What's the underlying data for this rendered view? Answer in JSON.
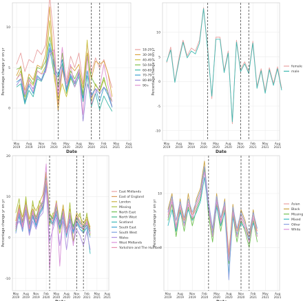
{
  "chart_data": [
    {
      "type": "line",
      "xlabel": "Date",
      "ylabel": "Percentage change yr on yr",
      "x_ticks": [
        "May 2019",
        "Aug 2019",
        "Nov 2019",
        "Feb 2020",
        "May 2020",
        "Aug 2020",
        "Nov 2020",
        "Feb 2021",
        "May 2021",
        "Aug 2021"
      ],
      "y_ticks": [
        0,
        5,
        10
      ],
      "ylim": [
        -4,
        13
      ],
      "grid": true,
      "legend_position": "right",
      "vlines": [
        "Mar 2020",
        "Nov 2020",
        "Jan 2021"
      ],
      "series": [
        {
          "name": "18-29",
          "color": "#e8a0a0",
          "values": [
            5.4,
            6.8,
            4.5,
            6.0,
            5.6,
            7.2,
            6.6,
            7.8,
            13.8,
            8.6,
            0.5,
            5.4,
            3.4,
            6.4,
            5.0,
            6.8,
            3.0,
            8.0,
            4.4,
            6.2,
            4.9,
            6.0,
            4.3,
            2.5
          ]
        },
        {
          "name": "30-39",
          "color": "#d9a441",
          "values": [
            4.0,
            5.2,
            2.2,
            4.2,
            3.5,
            5.3,
            5.0,
            6.6,
            12.5,
            5.4,
            -0.3,
            4.8,
            2.4,
            5.2,
            4.6,
            5.4,
            2.5,
            6.8,
            3.6,
            5.8,
            5.4,
            5.8,
            4.3,
            1.4
          ]
        },
        {
          "name": "40-49",
          "color": "#c9c040",
          "values": [
            3.5,
            4.6,
            0.8,
            3.4,
            2.8,
            4.6,
            4.2,
            5.2,
            10.8,
            4.0,
            1.0,
            3.0,
            1.4,
            3.6,
            3.0,
            4.2,
            1.5,
            8.4,
            0.8,
            3.0,
            2.0,
            3.5,
            2.0,
            0.2
          ]
        },
        {
          "name": "50-59",
          "color": "#7fbf4a",
          "values": [
            4.8,
            5.0,
            1.4,
            3.8,
            3.0,
            5.0,
            4.8,
            5.8,
            8.8,
            6.0,
            2.6,
            6.8,
            1.8,
            4.6,
            3.6,
            4.8,
            1.8,
            6.5,
            3.8,
            2.8,
            2.2,
            3.8,
            1.8,
            0.8
          ]
        },
        {
          "name": "60-69",
          "color": "#3fb8a8",
          "values": [
            2.6,
            3.0,
            0.5,
            2.2,
            1.4,
            3.6,
            3.3,
            4.6,
            7.2,
            4.3,
            3.8,
            5.5,
            2.0,
            3.8,
            2.6,
            3.9,
            0.8,
            4.0,
            0.2,
            1.8,
            -0.2,
            1.5,
            0.5,
            -0.4
          ]
        },
        {
          "name": "70-79",
          "color": "#3aa0d0",
          "values": [
            3.2,
            3.6,
            0.7,
            2.8,
            1.8,
            4.0,
            3.5,
            5.0,
            8.0,
            5.2,
            4.0,
            6.0,
            2.2,
            4.0,
            3.0,
            4.2,
            1.2,
            4.6,
            1.6,
            2.4,
            0.8,
            2.6,
            1.6,
            0.1
          ]
        },
        {
          "name": "80-89",
          "color": "#9a8cd8",
          "values": [
            2.8,
            3.6,
            1.6,
            3.0,
            2.4,
            3.8,
            3.4,
            4.8,
            7.4,
            5.6,
            2.0,
            5.0,
            2.6,
            4.2,
            3.2,
            4.4,
            -1.6,
            3.0,
            1.4,
            2.4,
            1.8,
            2.6,
            2.0,
            0.2
          ]
        },
        {
          "name": "90+",
          "color": "#e090d0",
          "values": [
            3.6,
            4.2,
            1.8,
            3.6,
            2.0,
            4.6,
            4.2,
            4.4,
            6.6,
            7.2,
            1.5,
            7.5,
            3.0,
            5.4,
            2.6,
            4.8,
            -0.8,
            6.4,
            0.4,
            2.0,
            2.6,
            5.4,
            2.8,
            0.8
          ]
        }
      ]
    },
    {
      "type": "line",
      "xlabel": "Date",
      "ylabel": "Percentage change yr on yr",
      "x_ticks": [
        "May 2019",
        "Aug 2019",
        "Nov 2019",
        "Feb 2020",
        "May 2020",
        "Aug 2020",
        "Nov 2020",
        "Feb 2021",
        "May 2021",
        "Aug 2021"
      ],
      "y_ticks": [
        -10,
        -5,
        0,
        5,
        10
      ],
      "ylim": [
        -12,
        16
      ],
      "grid": true,
      "legend_position": "right",
      "vlines": [
        "Mar 2020",
        "Nov 2020",
        "Jan 2021"
      ],
      "series": [
        {
          "name": "female",
          "color": "#e8a0a0",
          "values": [
            3.8,
            7.0,
            0.0,
            4.8,
            8.4,
            5.2,
            6.8,
            6.2,
            8.4,
            15.0,
            7.0,
            -3.5,
            9.0,
            9.0,
            2.2,
            6.2,
            -8.6,
            8.4,
            2.4,
            4.0,
            2.0,
            8.2,
            -1.0,
            2.6,
            -2.0,
            2.8,
            -0.4,
            3.0,
            -1.4
          ]
        },
        {
          "name": "male",
          "color": "#3fb8b0",
          "values": [
            4.0,
            6.4,
            -0.2,
            4.2,
            8.0,
            4.8,
            6.2,
            5.6,
            7.8,
            14.8,
            6.4,
            -3.0,
            8.6,
            8.6,
            1.8,
            5.8,
            -8.2,
            8.0,
            2.0,
            3.6,
            1.6,
            7.8,
            -1.4,
            2.2,
            -2.4,
            2.4,
            -0.8,
            2.6,
            -1.8
          ]
        }
      ]
    },
    {
      "type": "line",
      "xlabel": "Date",
      "ylabel": "Percentage change yr on yr",
      "x_ticks": [
        "May 2019",
        "Aug 2019",
        "Nov 2019",
        "Feb 2020",
        "May 2020",
        "Aug 2020",
        "Nov 2020",
        "Feb 2021",
        "May 2021",
        "Aug 2021"
      ],
      "y_ticks": [
        -10,
        0,
        10,
        20
      ],
      "ylim": [
        -13,
        20
      ],
      "grid": true,
      "legend_position": "right",
      "vlines": [
        "Mar 2020",
        "Nov 2020",
        "Jan 2021"
      ],
      "series": [
        {
          "name": "East Midlands",
          "color": "#e8a0a0",
          "values": [
            2.0,
            6.5,
            3.0,
            7.5,
            2.5,
            6.0,
            4.0,
            6.5,
            8.0,
            14.0,
            5.0,
            4.0,
            7.0,
            3.0,
            6.0,
            1.0,
            5.0,
            2.0,
            4.5,
            3.0,
            2.0,
            3.5,
            1.5
          ]
        },
        {
          "name": "East of England",
          "color": "#d99a5a",
          "values": [
            3.0,
            7.5,
            4.0,
            8.5,
            3.5,
            7.0,
            5.0,
            7.5,
            9.0,
            15.0,
            4.0,
            5.0,
            8.0,
            2.5,
            7.0,
            2.0,
            6.0,
            1.5,
            5.5,
            4.0,
            3.0,
            4.5,
            2.0
          ]
        },
        {
          "name": "London",
          "color": "#c9b040",
          "values": [
            4.0,
            8.0,
            5.0,
            9.0,
            4.5,
            8.0,
            6.5,
            8.5,
            10.5,
            16.0,
            6.0,
            4.5,
            9.0,
            3.0,
            8.0,
            1.5,
            7.0,
            2.5,
            6.0,
            5.0,
            3.5,
            5.0,
            2.5
          ]
        },
        {
          "name": "Missing",
          "color": "#a8c040",
          "values": [
            6.0,
            9.5,
            2.0,
            10.0,
            1.0,
            9.0,
            3.5,
            9.0,
            7.0,
            13.0,
            3.0,
            6.0,
            6.0,
            1.0,
            5.0,
            0.0,
            8.5,
            -1.0,
            4.0,
            6.0,
            1.0,
            6.0,
            0.5
          ]
        },
        {
          "name": "North East",
          "color": "#6fc050",
          "values": [
            1.5,
            6.0,
            2.5,
            7.0,
            2.0,
            5.5,
            3.5,
            6.0,
            7.5,
            13.0,
            5.0,
            3.0,
            6.0,
            4.0,
            5.5,
            2.0,
            4.5,
            3.0,
            4.0,
            2.5,
            2.5,
            3.0,
            1.0
          ]
        },
        {
          "name": "North West",
          "color": "#3fb88a",
          "values": [
            2.5,
            7.0,
            3.5,
            8.0,
            3.0,
            6.5,
            4.5,
            7.0,
            8.5,
            14.5,
            5.5,
            4.5,
            7.5,
            3.5,
            6.5,
            1.5,
            5.5,
            2.5,
            5.0,
            3.5,
            2.5,
            4.0,
            1.5
          ]
        },
        {
          "name": "Scotland",
          "color": "#3ab8b8",
          "values": [
            3.5,
            5.0,
            1.5,
            6.5,
            2.0,
            5.0,
            3.0,
            5.5,
            7.0,
            12.5,
            4.5,
            3.5,
            5.5,
            2.0,
            5.0,
            0.5,
            4.0,
            1.0,
            3.5,
            2.0,
            1.5,
            2.5,
            -4.0
          ]
        },
        {
          "name": "South East",
          "color": "#3aa0d0",
          "values": [
            2.0,
            6.0,
            2.0,
            7.0,
            1.5,
            5.5,
            3.0,
            6.0,
            7.5,
            13.5,
            4.5,
            3.5,
            6.5,
            2.5,
            5.5,
            1.0,
            4.5,
            1.5,
            4.0,
            2.5,
            2.0,
            3.0,
            1.0
          ]
        },
        {
          "name": "South West",
          "color": "#7aa0e0",
          "values": [
            1.0,
            5.5,
            1.5,
            6.5,
            1.0,
            5.0,
            2.5,
            5.5,
            7.0,
            13.0,
            4.0,
            3.0,
            6.0,
            2.0,
            5.0,
            0.0,
            4.0,
            1.0,
            3.5,
            2.0,
            1.0,
            2.5,
            0.0
          ]
        },
        {
          "name": "Wales",
          "color": "#b090e0",
          "values": [
            2.5,
            4.0,
            2.0,
            6.0,
            0.5,
            4.0,
            2.0,
            5.0,
            6.0,
            12.0,
            -1.0,
            2.0,
            5.0,
            -2.0,
            4.0,
            -3.0,
            3.0,
            -1.5,
            2.0,
            0.5,
            -2.0,
            1.5,
            -3.0
          ]
        },
        {
          "name": "West Midlands",
          "color": "#d890d8",
          "values": [
            3.0,
            7.0,
            3.0,
            8.0,
            2.5,
            6.5,
            4.0,
            7.0,
            9.0,
            18.0,
            -8.0,
            4.0,
            8.5,
            -7.0,
            6.5,
            1.5,
            6.0,
            -2.0,
            5.0,
            4.0,
            2.0,
            4.0,
            1.0
          ]
        },
        {
          "name": "Yorkshire and The Humber",
          "color": "#e890b0",
          "values": [
            2.0,
            6.5,
            2.5,
            7.5,
            2.0,
            6.0,
            3.5,
            6.5,
            8.0,
            14.0,
            5.0,
            4.0,
            7.0,
            3.0,
            6.0,
            1.0,
            5.0,
            2.0,
            4.5,
            3.0,
            2.0,
            3.5,
            1.0
          ]
        }
      ]
    },
    {
      "type": "line",
      "xlabel": "Date",
      "ylabel": "Percentage change yr on yr",
      "x_ticks": [
        "May 2019",
        "Aug 2019",
        "Nov 2019",
        "Feb 2020",
        "May 2020",
        "Aug 2020",
        "Nov 2020",
        "Feb 2021",
        "May 2021",
        "Aug 2021"
      ],
      "y_ticks": [
        0,
        10
      ],
      "ylim": [
        -8,
        17
      ],
      "grid": true,
      "legend_position": "right",
      "vlines": [
        "Mar 2020",
        "Nov 2020",
        "Jan 2021"
      ],
      "series": [
        {
          "name": "Asian",
          "color": "#e8a0a0",
          "values": [
            6.0,
            9.0,
            4.0,
            8.0,
            5.0,
            8.5,
            6.0,
            8.0,
            10.0,
            14.0,
            8.0,
            3.0,
            9.0,
            5.0,
            8.0,
            -1.0,
            7.0,
            3.0,
            6.0,
            4.0,
            2.0,
            6.0,
            3.0
          ]
        },
        {
          "name": "Black",
          "color": "#c9a040",
          "values": [
            7.0,
            10.0,
            3.0,
            9.0,
            4.0,
            10.0,
            5.0,
            9.0,
            11.0,
            16.0,
            7.0,
            2.0,
            10.0,
            4.0,
            9.0,
            -2.0,
            8.0,
            2.0,
            7.0,
            5.0,
            1.0,
            7.0,
            2.0
          ]
        },
        {
          "name": "Missing",
          "color": "#6fc050",
          "values": [
            5.0,
            8.0,
            2.0,
            7.0,
            3.0,
            7.5,
            4.0,
            7.0,
            9.0,
            14.5,
            6.0,
            1.0,
            8.0,
            3.0,
            7.0,
            -3.0,
            6.0,
            1.0,
            5.0,
            3.0,
            0.0,
            5.0,
            1.0
          ]
        },
        {
          "name": "Mixed",
          "color": "#3ab8c0",
          "values": [
            4.0,
            7.0,
            3.0,
            6.5,
            4.5,
            7.0,
            5.0,
            6.5,
            8.5,
            13.0,
            7.0,
            2.5,
            7.5,
            4.0,
            6.5,
            -5.0,
            5.5,
            2.5,
            4.5,
            3.5,
            1.5,
            4.5,
            2.5
          ]
        },
        {
          "name": "Other",
          "color": "#8aa0e0",
          "values": [
            6.5,
            9.5,
            5.0,
            8.5,
            5.5,
            9.0,
            6.5,
            8.5,
            10.5,
            15.0,
            8.5,
            3.5,
            9.5,
            5.5,
            8.5,
            -6.0,
            7.5,
            3.5,
            6.5,
            4.5,
            2.5,
            6.5,
            3.5
          ]
        },
        {
          "name": "White",
          "color": "#d890d8",
          "values": [
            5.5,
            8.5,
            3.5,
            7.5,
            4.0,
            8.0,
            5.5,
            7.5,
            9.5,
            14.0,
            7.5,
            2.0,
            8.5,
            4.5,
            7.5,
            -2.5,
            6.5,
            2.0,
            5.5,
            3.5,
            1.0,
            5.5,
            2.0
          ]
        }
      ]
    }
  ]
}
